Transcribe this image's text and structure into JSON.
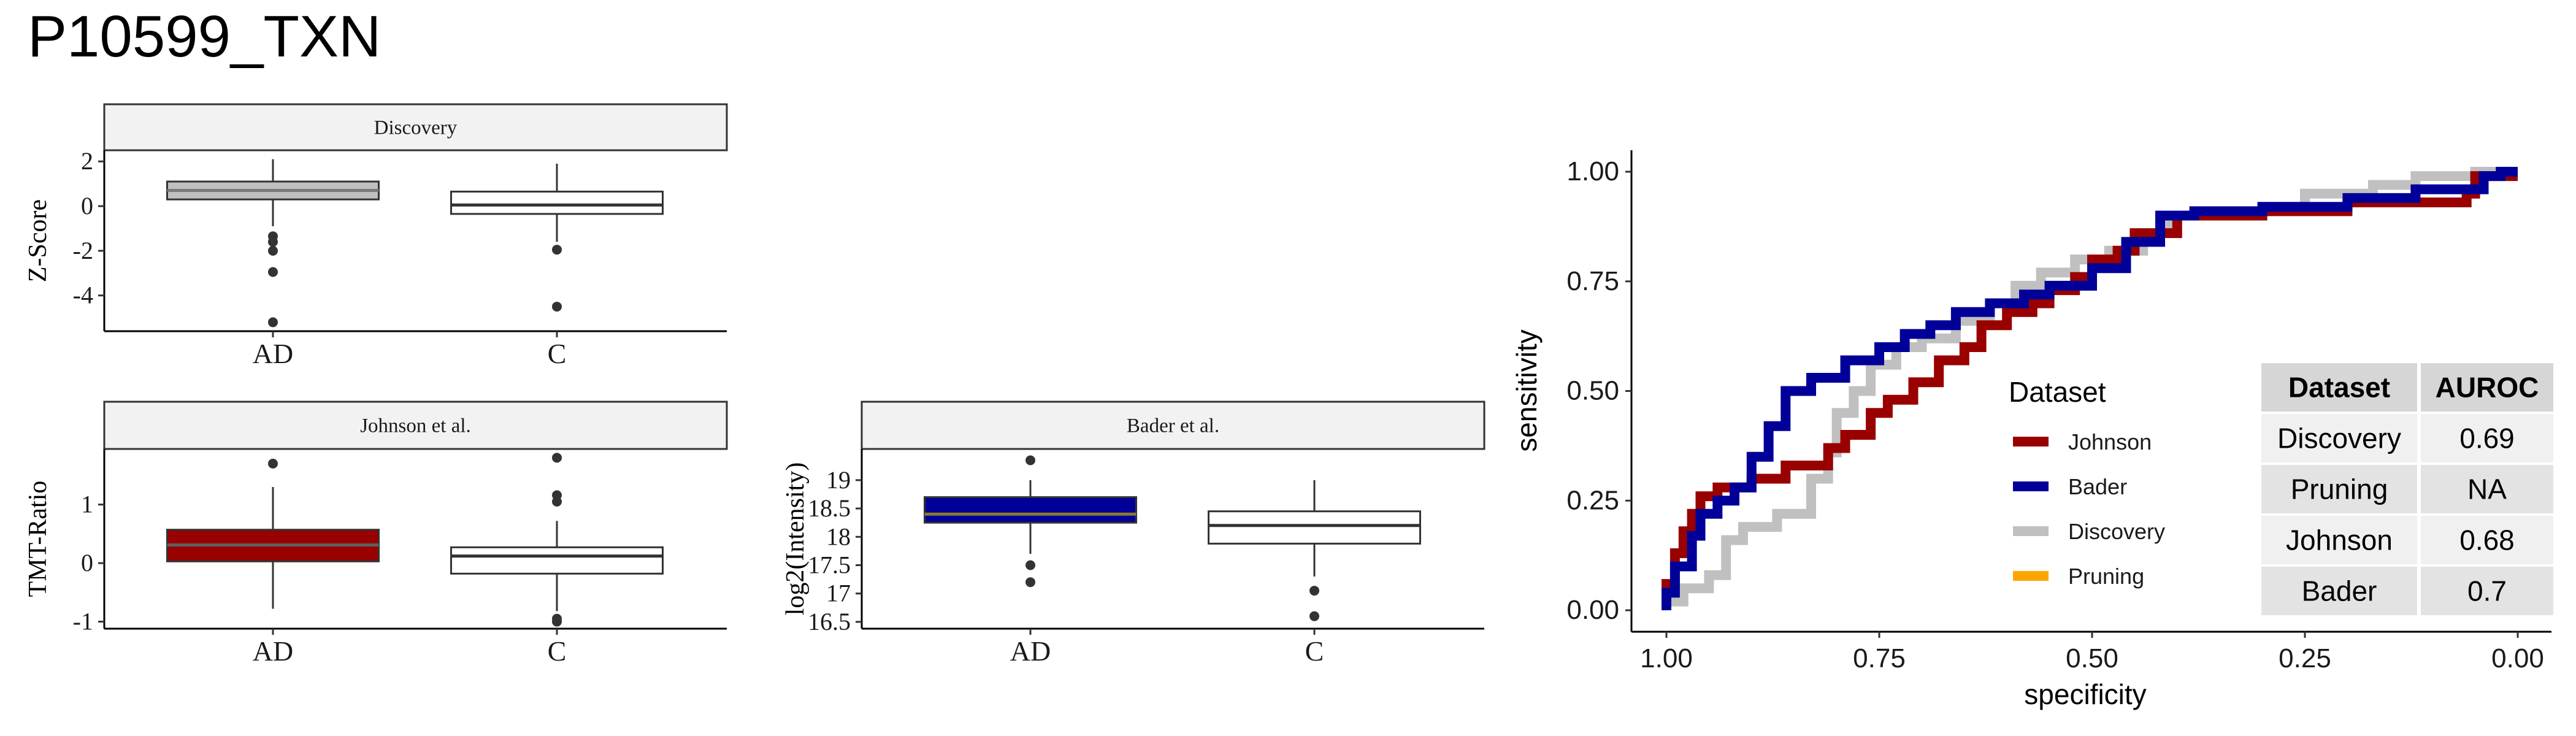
{
  "title": "P10599_TXN",
  "chart_data": [
    {
      "type": "box",
      "title": "Discovery",
      "xlabel": "",
      "ylabel": "Z-Score",
      "categories": [
        "AD",
        "C"
      ],
      "yticks": [
        2,
        0,
        -2,
        -4
      ],
      "ylim": [
        -5.6,
        2.5
      ],
      "boxes": [
        {
          "category": "AD",
          "fill": "#c0c0c0",
          "median_color": "#7a7a7a",
          "q1": 0.3,
          "median": 0.7,
          "q3": 1.1,
          "whisker_low": -0.9,
          "whisker_high": 2.1,
          "outliers": [
            -1.35,
            -1.6,
            -2.0,
            -2.95,
            -5.2
          ]
        },
        {
          "category": "C",
          "fill": "#ffffff",
          "median_color": "#333333",
          "q1": -0.35,
          "median": 0.05,
          "q3": 0.65,
          "whisker_low": -1.6,
          "whisker_high": 1.9,
          "outliers": [
            -1.95,
            -4.5
          ]
        }
      ]
    },
    {
      "type": "box",
      "title": "Johnson et al.",
      "xlabel": "",
      "ylabel": "TMT-Ratio",
      "categories": [
        "AD",
        "C"
      ],
      "yticks": [
        1,
        0,
        -1
      ],
      "ylim": [
        -1.12,
        1.95
      ],
      "boxes": [
        {
          "category": "AD",
          "fill": "#990000",
          "median_color": "#606060",
          "q1": 0.03,
          "median": 0.31,
          "q3": 0.57,
          "whisker_low": -0.78,
          "whisker_high": 1.3,
          "outliers": [
            1.7
          ]
        },
        {
          "category": "C",
          "fill": "#ffffff",
          "median_color": "#333333",
          "q1": -0.18,
          "median": 0.12,
          "q3": 0.27,
          "whisker_low": -0.82,
          "whisker_high": 0.72,
          "outliers": [
            1.8,
            1.16,
            1.05,
            -0.95,
            -1.0
          ]
        }
      ]
    },
    {
      "type": "box",
      "title": "Bader et al.",
      "xlabel": "",
      "ylabel": "log2(Intensity)",
      "categories": [
        "AD",
        "C"
      ],
      "yticks": [
        19.0,
        18.5,
        18.0,
        17.5,
        17.0,
        16.5
      ],
      "ylim": [
        16.38,
        19.55
      ],
      "boxes": [
        {
          "category": "AD",
          "fill": "#000099",
          "median_color": "#8a7a2a",
          "q1": 18.25,
          "median": 18.4,
          "q3": 18.7,
          "whisker_low": 17.7,
          "whisker_high": 19.0,
          "outliers": [
            19.35,
            17.5,
            17.2
          ]
        },
        {
          "category": "C",
          "fill": "#ffffff",
          "median_color": "#333333",
          "q1": 17.88,
          "median": 18.2,
          "q3": 18.45,
          "whisker_low": 17.3,
          "whisker_high": 19.0,
          "outliers": [
            17.05,
            16.6
          ]
        }
      ]
    },
    {
      "type": "line",
      "title": "",
      "xlabel": "specificity",
      "ylabel": "sensitivity",
      "xlim": [
        1.0,
        0.0
      ],
      "ylim": [
        0.0,
        1.0
      ],
      "xticks": [
        "1.00",
        "0.75",
        "0.50",
        "0.25",
        "0.00"
      ],
      "yticks": [
        "0.00",
        "0.25",
        "0.50",
        "0.75",
        "1.00"
      ],
      "legend_title": "Dataset",
      "legend_position": "right",
      "series": [
        {
          "name": "Johnson",
          "color": "#990000",
          "x": [
            1.0,
            1.0,
            0.99,
            0.99,
            0.98,
            0.98,
            0.97,
            0.97,
            0.96,
            0.96,
            0.94,
            0.94,
            0.9,
            0.9,
            0.86,
            0.86,
            0.81,
            0.81,
            0.79,
            0.79,
            0.76,
            0.76,
            0.74,
            0.74,
            0.71,
            0.71,
            0.68,
            0.68,
            0.65,
            0.65,
            0.63,
            0.63,
            0.6,
            0.6,
            0.57,
            0.57,
            0.55,
            0.55,
            0.52,
            0.52,
            0.5,
            0.5,
            0.47,
            0.47,
            0.45,
            0.45,
            0.4,
            0.4,
            0.3,
            0.3,
            0.2,
            0.2,
            0.06,
            0.06,
            0.05,
            0.05,
            0.0
          ],
          "y": [
            0.0,
            0.06,
            0.06,
            0.13,
            0.13,
            0.18,
            0.18,
            0.22,
            0.22,
            0.26,
            0.26,
            0.28,
            0.28,
            0.3,
            0.3,
            0.33,
            0.33,
            0.37,
            0.37,
            0.4,
            0.4,
            0.45,
            0.45,
            0.48,
            0.48,
            0.52,
            0.52,
            0.57,
            0.57,
            0.6,
            0.6,
            0.65,
            0.65,
            0.68,
            0.68,
            0.7,
            0.7,
            0.73,
            0.73,
            0.76,
            0.76,
            0.8,
            0.8,
            0.82,
            0.82,
            0.86,
            0.86,
            0.9,
            0.9,
            0.91,
            0.91,
            0.93,
            0.93,
            0.95,
            0.95,
            0.99,
            0.99
          ]
        },
        {
          "name": "Bader",
          "color": "#000099",
          "x": [
            1.0,
            1.0,
            0.99,
            0.99,
            0.97,
            0.97,
            0.96,
            0.96,
            0.94,
            0.94,
            0.92,
            0.92,
            0.9,
            0.9,
            0.88,
            0.88,
            0.86,
            0.86,
            0.83,
            0.83,
            0.79,
            0.79,
            0.75,
            0.75,
            0.72,
            0.72,
            0.69,
            0.69,
            0.66,
            0.66,
            0.62,
            0.62,
            0.58,
            0.58,
            0.55,
            0.55,
            0.5,
            0.5,
            0.46,
            0.46,
            0.42,
            0.42,
            0.38,
            0.38,
            0.3,
            0.3,
            0.2,
            0.2,
            0.12,
            0.12,
            0.04,
            0.04,
            0.02,
            0.02,
            0.0
          ],
          "y": [
            0.0,
            0.04,
            0.04,
            0.1,
            0.1,
            0.17,
            0.17,
            0.22,
            0.22,
            0.25,
            0.25,
            0.28,
            0.28,
            0.35,
            0.35,
            0.42,
            0.42,
            0.5,
            0.5,
            0.53,
            0.53,
            0.57,
            0.57,
            0.6,
            0.6,
            0.63,
            0.63,
            0.65,
            0.65,
            0.68,
            0.68,
            0.7,
            0.7,
            0.72,
            0.72,
            0.74,
            0.74,
            0.78,
            0.78,
            0.84,
            0.84,
            0.9,
            0.9,
            0.91,
            0.91,
            0.92,
            0.92,
            0.94,
            0.94,
            0.96,
            0.96,
            0.99,
            0.99,
            1.0,
            1.0
          ]
        },
        {
          "name": "Discovery",
          "color": "#c0c0c0",
          "x": [
            1.0,
            1.0,
            0.98,
            0.98,
            0.95,
            0.95,
            0.93,
            0.93,
            0.91,
            0.91,
            0.87,
            0.87,
            0.83,
            0.83,
            0.81,
            0.81,
            0.8,
            0.8,
            0.78,
            0.78,
            0.76,
            0.76,
            0.73,
            0.73,
            0.7,
            0.7,
            0.66,
            0.66,
            0.62,
            0.62,
            0.59,
            0.59,
            0.56,
            0.56,
            0.52,
            0.52,
            0.48,
            0.48,
            0.44,
            0.44,
            0.42,
            0.42,
            0.4,
            0.4,
            0.3,
            0.3,
            0.25,
            0.25,
            0.17,
            0.17,
            0.12,
            0.12,
            0.05,
            0.05,
            0.0
          ],
          "y": [
            0.0,
            0.02,
            0.02,
            0.05,
            0.05,
            0.08,
            0.08,
            0.16,
            0.16,
            0.19,
            0.19,
            0.22,
            0.22,
            0.3,
            0.3,
            0.36,
            0.36,
            0.45,
            0.45,
            0.5,
            0.5,
            0.56,
            0.56,
            0.6,
            0.6,
            0.62,
            0.62,
            0.66,
            0.66,
            0.7,
            0.7,
            0.74,
            0.74,
            0.77,
            0.77,
            0.8,
            0.8,
            0.82,
            0.82,
            0.85,
            0.85,
            0.88,
            0.88,
            0.9,
            0.9,
            0.92,
            0.92,
            0.95,
            0.95,
            0.97,
            0.97,
            0.99,
            0.99,
            1.0,
            1.0
          ]
        },
        {
          "name": "Pruning",
          "color": "#ffa500",
          "x": [],
          "y": []
        }
      ]
    },
    {
      "type": "table",
      "columns": [
        "Dataset",
        "AUROC"
      ],
      "rows": [
        [
          "Discovery",
          "0.69"
        ],
        [
          "Pruning",
          "NA"
        ],
        [
          "Johnson",
          "0.68"
        ],
        [
          "Bader",
          "0.7"
        ]
      ]
    }
  ]
}
